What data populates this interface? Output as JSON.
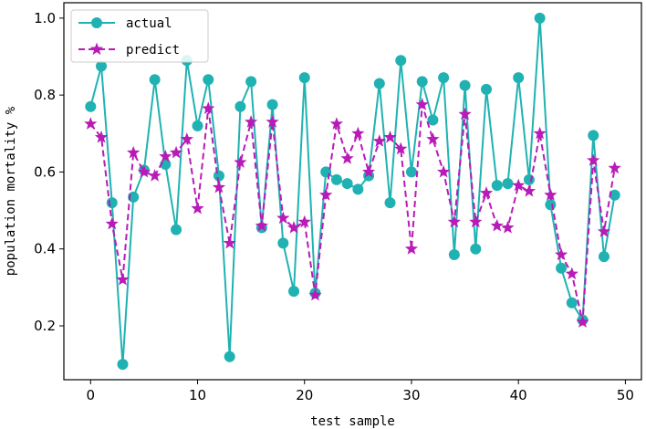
{
  "chart_data": {
    "type": "line",
    "xlabel": "test sample",
    "ylabel": "population mortality %",
    "xlim": [
      -2.5,
      51.5
    ],
    "ylim": [
      0.06,
      1.04
    ],
    "xticks": [
      0,
      10,
      20,
      30,
      40,
      50
    ],
    "xtick_labels": [
      "0",
      "10",
      "20",
      "30",
      "40",
      "50"
    ],
    "yticks": [
      0.2,
      0.4,
      0.6,
      0.8,
      1.0
    ],
    "ytick_labels": [
      "0.2",
      "0.4",
      "0.6",
      "0.8",
      "1.0"
    ],
    "grid": false,
    "legend_position": "top-left",
    "x": [
      0,
      1,
      2,
      3,
      4,
      5,
      6,
      7,
      8,
      9,
      10,
      11,
      12,
      13,
      14,
      15,
      16,
      17,
      18,
      19,
      20,
      21,
      22,
      23,
      24,
      25,
      26,
      27,
      28,
      29,
      30,
      31,
      32,
      33,
      34,
      35,
      36,
      37,
      38,
      39,
      40,
      41,
      42,
      43,
      44,
      45,
      46,
      47,
      48,
      49
    ],
    "series": [
      {
        "name": "actual",
        "color": "#20b2b2",
        "style": "solid",
        "marker": "circle",
        "values": [
          0.77,
          0.875,
          0.52,
          0.1,
          0.535,
          0.605,
          0.84,
          0.62,
          0.45,
          0.89,
          0.72,
          0.84,
          0.59,
          0.12,
          0.77,
          0.835,
          0.455,
          0.775,
          0.415,
          0.29,
          0.845,
          0.285,
          0.6,
          0.58,
          0.57,
          0.555,
          0.59,
          0.83,
          0.52,
          0.89,
          0.6,
          0.835,
          0.735,
          0.845,
          0.385,
          0.825,
          0.4,
          0.815,
          0.565,
          0.57,
          0.845,
          0.58,
          1.0,
          0.515,
          0.35,
          0.26,
          0.215,
          0.695,
          0.38,
          0.54
        ]
      },
      {
        "name": "predict",
        "color": "#b81bb8",
        "style": "dashed",
        "marker": "star",
        "values": [
          0.725,
          0.69,
          0.465,
          0.32,
          0.65,
          0.6,
          0.59,
          0.64,
          0.65,
          0.685,
          0.505,
          0.765,
          0.56,
          0.415,
          0.625,
          0.73,
          0.46,
          0.73,
          0.48,
          0.455,
          0.47,
          0.28,
          0.54,
          0.725,
          0.635,
          0.7,
          0.6,
          0.68,
          0.69,
          0.66,
          0.4,
          0.775,
          0.685,
          0.6,
          0.47,
          0.75,
          0.47,
          0.545,
          0.46,
          0.455,
          0.565,
          0.55,
          0.7,
          0.54,
          0.385,
          0.335,
          0.21,
          0.63,
          0.445,
          0.61
        ]
      }
    ]
  }
}
